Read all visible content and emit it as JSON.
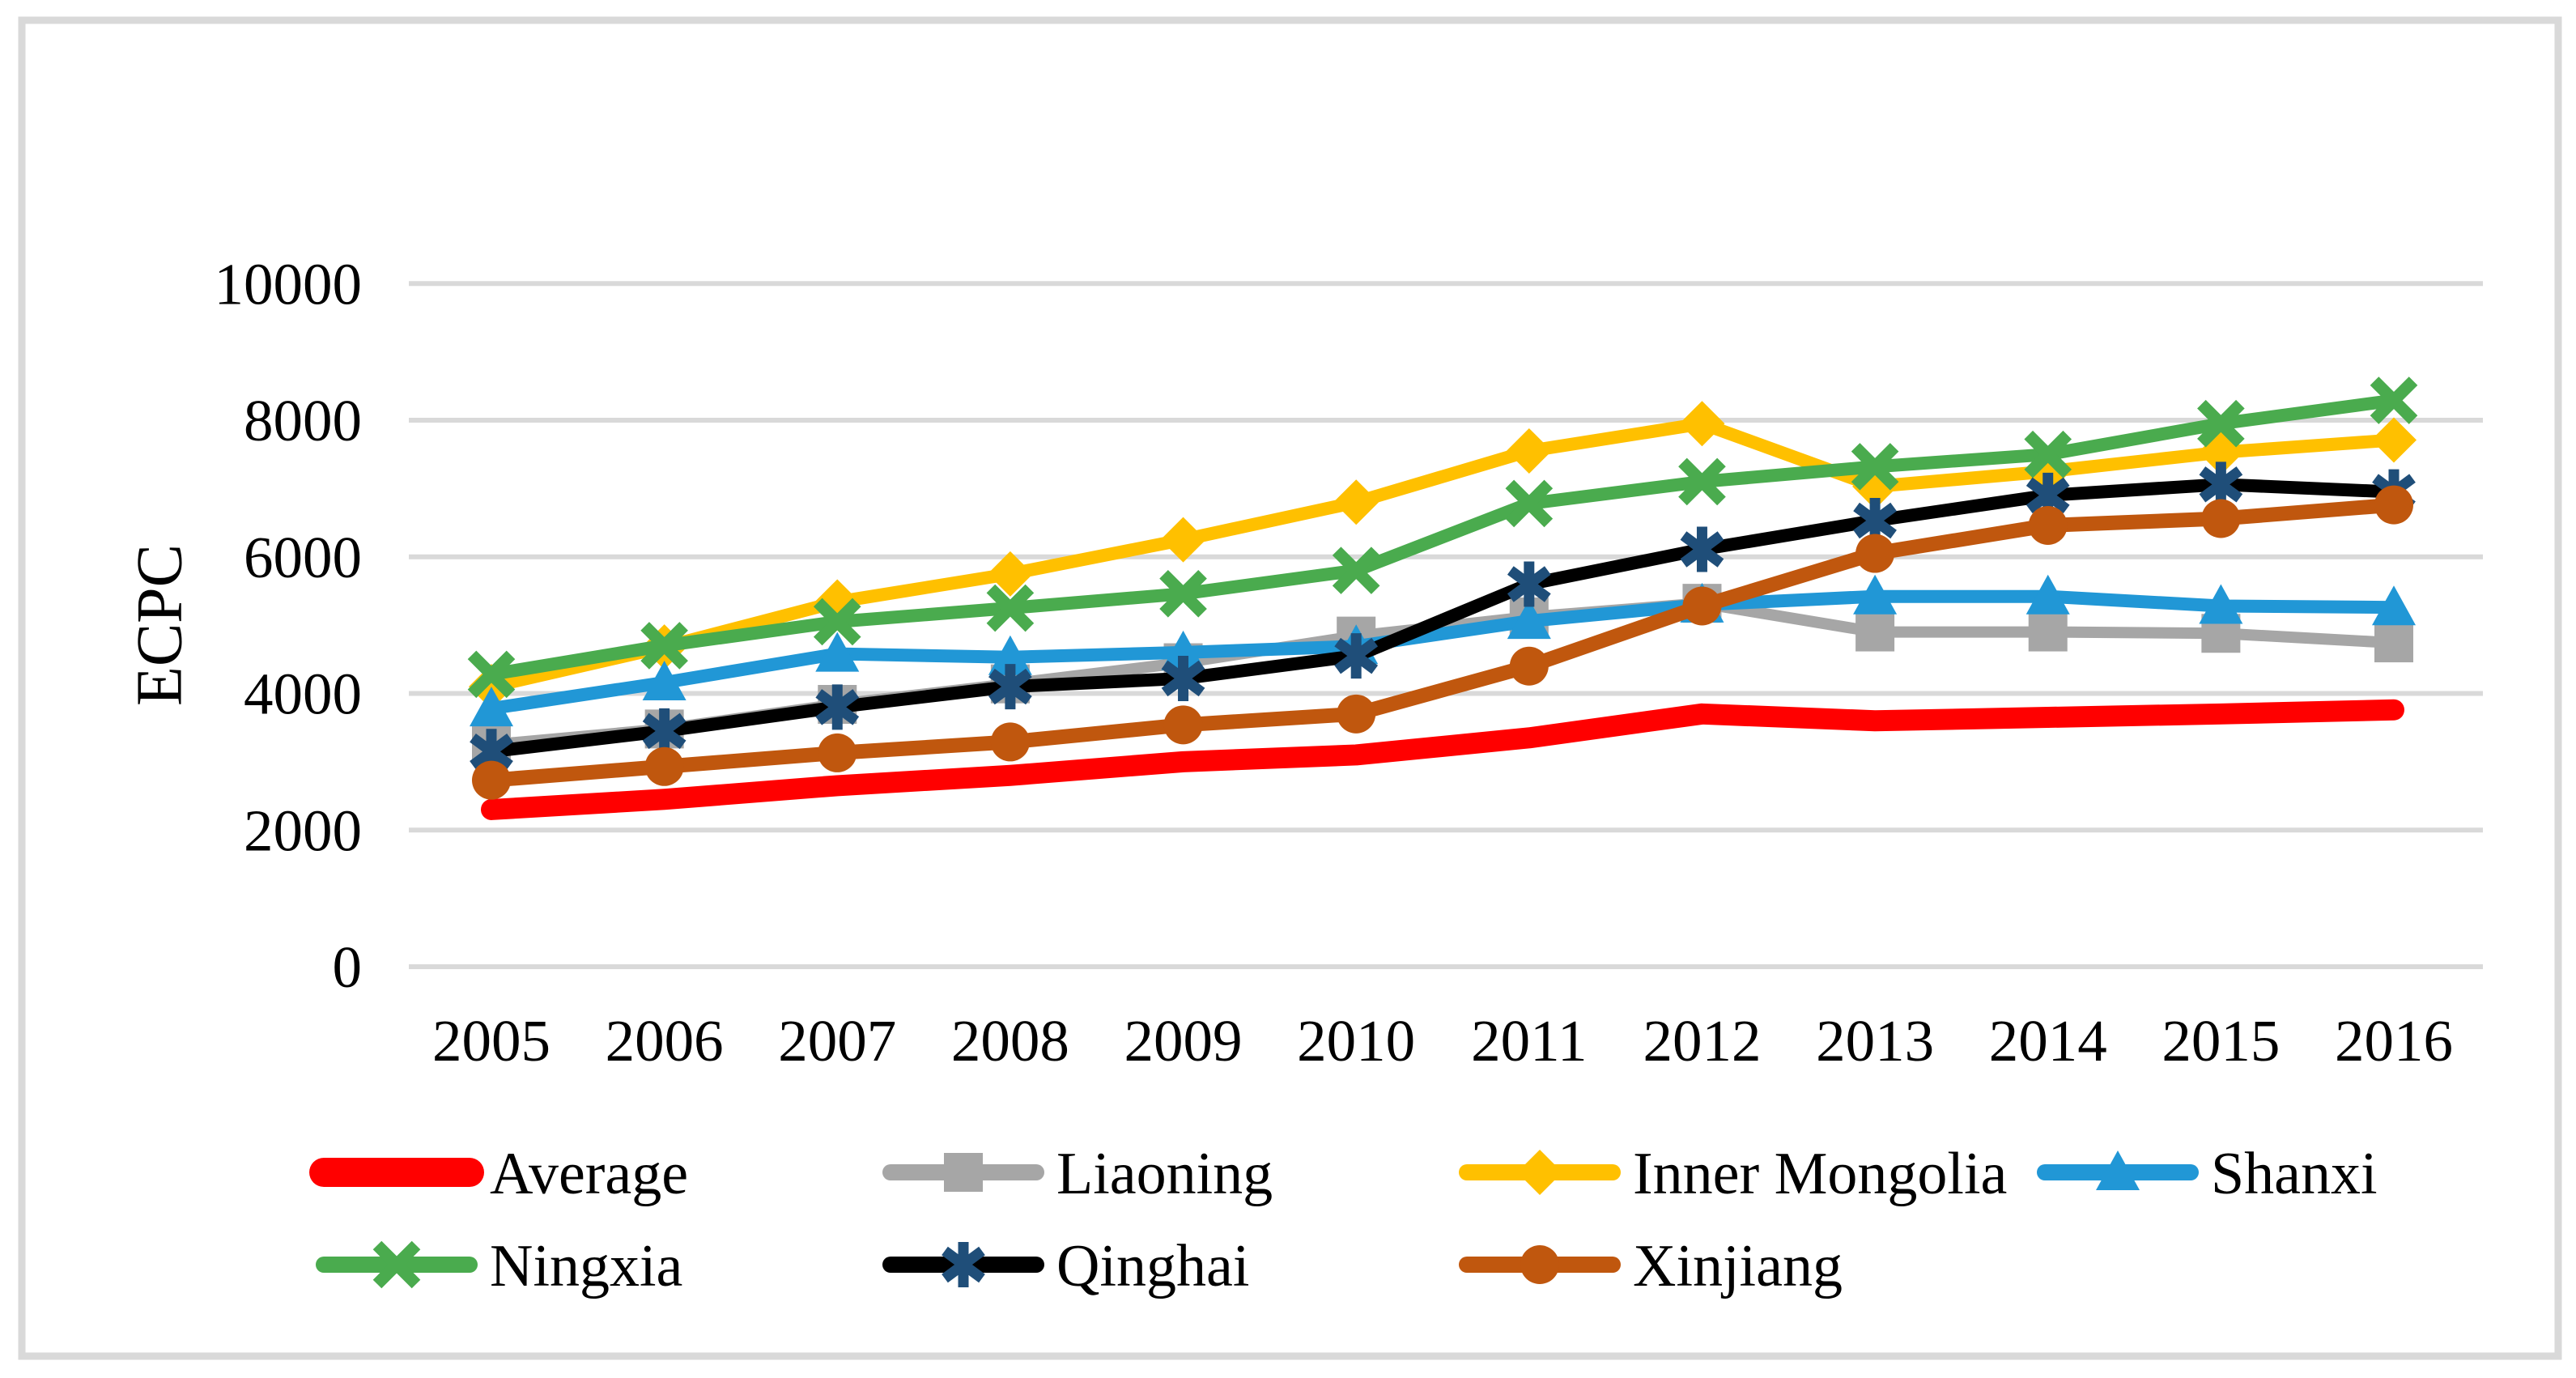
{
  "figure": {
    "background": "#FFFFFF",
    "border_color": "#D9D9D9"
  },
  "chart_data": {
    "type": "line",
    "title": "",
    "ylabel": "ECPC",
    "xlabel": "",
    "categories": [
      "2005",
      "2006",
      "2007",
      "2008",
      "2009",
      "2010",
      "2011",
      "2012",
      "2013",
      "2014",
      "2015",
      "2016"
    ],
    "y_ticks": [
      "0",
      "2000",
      "4000",
      "6000",
      "8000",
      "10000"
    ],
    "ylim": [
      0,
      10600
    ],
    "grid": true,
    "gridline_color": "#D9D9D9",
    "legend_position": "bottom",
    "legend_rows": [
      [
        "Average",
        "Liaoning",
        "Inner Mongolia",
        "Shanxi"
      ],
      [
        "Ningxia",
        "Qinghai",
        "Xinjiang"
      ]
    ],
    "series": [
      {
        "name": "Average",
        "color": "#FF0000",
        "marker": "none",
        "marker_color": "#FF0000",
        "line_width": 26,
        "values": [
          2300,
          2450,
          2650,
          2800,
          3000,
          3100,
          3350,
          3700,
          3600,
          3650,
          3700,
          3760
        ]
      },
      {
        "name": "Liaoning",
        "color": "#A6A6A6",
        "marker": "square",
        "marker_color": "#A6A6A6",
        "line_width": 14,
        "values": [
          3250,
          3480,
          3840,
          4140,
          4450,
          4840,
          5120,
          5320,
          4900,
          4900,
          4880,
          4740
        ]
      },
      {
        "name": "Inner Mongolia",
        "color": "#FFC000",
        "marker": "diamond",
        "marker_color": "#FFC000",
        "line_width": 16,
        "values": [
          4100,
          4680,
          5340,
          5750,
          6250,
          6800,
          7550,
          7950,
          7030,
          7250,
          7530,
          7710
        ]
      },
      {
        "name": "Shanxi",
        "color": "#2197D6",
        "marker": "triangle",
        "marker_color": "#2197D6",
        "line_width": 16,
        "values": [
          3780,
          4160,
          4580,
          4530,
          4600,
          4690,
          5060,
          5300,
          5420,
          5420,
          5280,
          5260
        ]
      },
      {
        "name": "Ningxia",
        "color": "#4AAB4E",
        "marker": "x",
        "marker_color": "#4AAB4E",
        "line_width": 16,
        "values": [
          4280,
          4700,
          5050,
          5250,
          5460,
          5800,
          6780,
          7100,
          7320,
          7500,
          7950,
          8290
        ]
      },
      {
        "name": "Qinghai",
        "color": "#000000",
        "marker": "asterisk",
        "marker_color": "#1F4E79",
        "line_width": 16,
        "values": [
          3150,
          3450,
          3800,
          4100,
          4220,
          4550,
          5600,
          6110,
          6530,
          6900,
          7060,
          6950
        ]
      },
      {
        "name": "Xinjiang",
        "color": "#C0570E",
        "marker": "circle",
        "marker_color": "#C0570E",
        "line_width": 18,
        "values": [
          2730,
          2930,
          3130,
          3290,
          3540,
          3700,
          4400,
          5280,
          6050,
          6460,
          6560,
          6760
        ]
      }
    ]
  }
}
